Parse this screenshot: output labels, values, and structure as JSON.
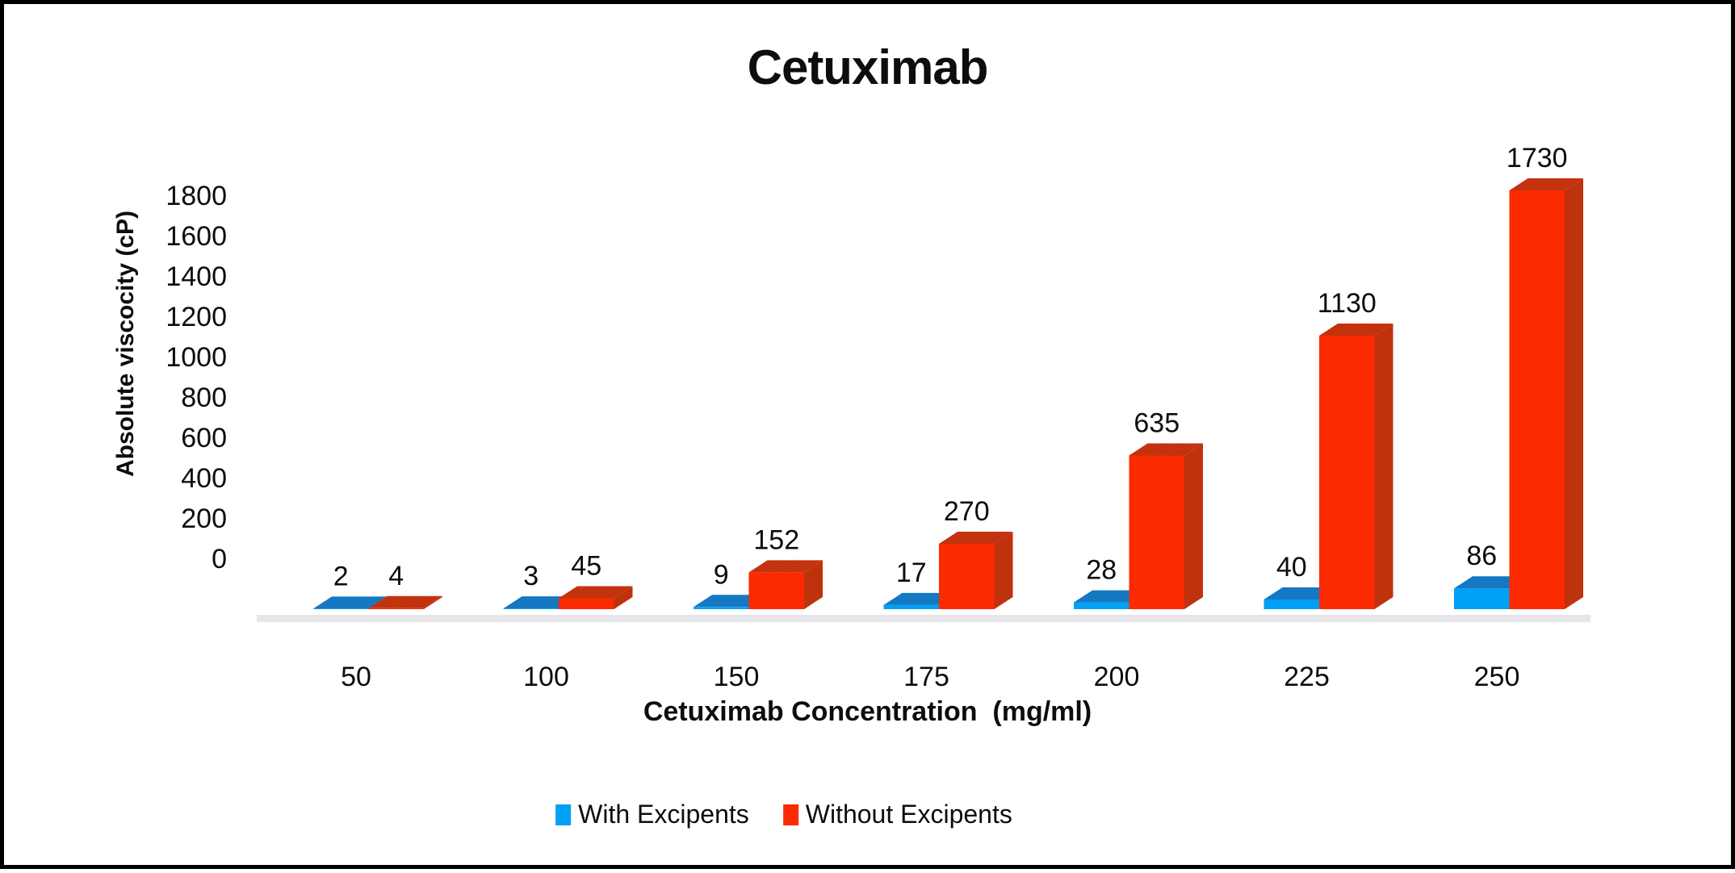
{
  "title": "Cetuximab",
  "chart_data": {
    "type": "bar",
    "style": "3d-clustered-column",
    "title": "Cetuximab",
    "xlabel": "Cetuximab Concentration  (mg/ml)",
    "ylabel": "Absolute viscocity (cP)",
    "categories": [
      "50",
      "100",
      "150",
      "175",
      "200",
      "225",
      "250"
    ],
    "series": [
      {
        "name": "With Excipents",
        "values": [
          2,
          3,
          9,
          17,
          28,
          40,
          86
        ],
        "front_color": "#00A0F5",
        "top_color": "#1578C2"
      },
      {
        "name": "Without Excipents",
        "values": [
          4,
          45,
          152,
          270,
          635,
          1130,
          1730
        ],
        "front_color": "#FB2A00",
        "top_color": "#CC3410",
        "top_dot_color": "#A62A06",
        "side_color": "#BF320E"
      }
    ],
    "y_tick_labels": [
      "0",
      "200",
      "400",
      "600",
      "800",
      "1000",
      "1200",
      "1400",
      "1600",
      "1800"
    ],
    "ylim": [
      0,
      1800
    ],
    "grid": false,
    "data_labels": true,
    "legend_position": "bottom",
    "floor_color": "#E6E6EA",
    "text_color": "#0d0d0d"
  }
}
